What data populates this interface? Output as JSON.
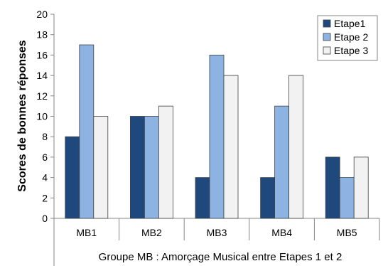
{
  "chart_data": {
    "type": "bar",
    "categories": [
      "MB1",
      "MB2",
      "MB3",
      "MB4",
      "MB5"
    ],
    "series": [
      {
        "name": "Etape1",
        "values": [
          8,
          10,
          4,
          4,
          6
        ],
        "color": "#1f497d"
      },
      {
        "name": "Etape 2",
        "values": [
          17,
          10,
          16,
          11,
          4
        ],
        "color": "#8db3e2"
      },
      {
        "name": "Etape 3",
        "values": [
          10,
          11,
          14,
          14,
          6
        ],
        "color": "#f2f2f2"
      }
    ],
    "title": "",
    "xlabel": "Groupe MB : Amorçage Musical entre Etapes 1 et 2",
    "ylabel": "Scores de bonnes réponses",
    "ylim": [
      0,
      20
    ],
    "yticks": [
      0,
      2,
      4,
      6,
      8,
      10,
      12,
      14,
      16,
      18,
      20
    ],
    "grid": false,
    "legend_position": "top-right"
  }
}
